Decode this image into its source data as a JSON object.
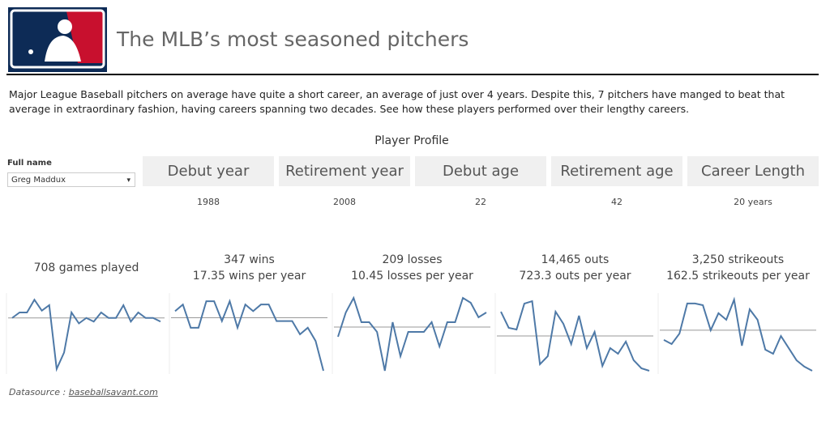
{
  "header": {
    "title": "The MLB’s most seasoned pitchers"
  },
  "intro": "Major League Baseball pitchers on average have quite a short career, an average of just over 4 years. Despite this, 7 pitchers have manged to beat that average in extraordinary fashion, having careers spanning two decades. See how these players performed over their lengthy careers.",
  "profile": {
    "title": "Player Profile",
    "filter_label": "Full name",
    "filter_value": "Greg Maddux",
    "fields": [
      {
        "label": "Debut year",
        "value": "1988"
      },
      {
        "label": "Retirement year",
        "value": "2008"
      },
      {
        "label": "Debut age",
        "value": "22"
      },
      {
        "label": "Retirement age",
        "value": "42"
      },
      {
        "label": "Career Length",
        "value": "20 years"
      }
    ]
  },
  "chart_data": [
    {
      "type": "line",
      "title": "708 games played",
      "color": "#4e79a7",
      "ylim": [
        0,
        40
      ],
      "average": 29,
      "values": [
        29,
        32,
        32,
        39,
        33,
        36,
        1,
        10,
        32,
        26,
        29,
        27,
        32,
        29,
        29,
        36,
        27,
        32,
        29,
        29,
        27
      ]
    },
    {
      "type": "line",
      "title": "347 wins",
      "subtitle": "17.35  wins per year",
      "color": "#4e79a7",
      "ylim": [
        0,
        22
      ],
      "average": 16,
      "values": [
        18,
        20,
        13,
        13,
        21,
        21,
        15,
        21,
        13,
        20,
        18,
        20,
        20,
        15,
        15,
        15,
        11,
        13,
        9,
        0
      ]
    },
    {
      "type": "line",
      "title": "209 losses",
      "subtitle": "10.45 losses per year",
      "color": "#4e79a7",
      "ylim": [
        0,
        15
      ],
      "average": 9,
      "values": [
        7,
        12,
        15,
        10,
        10,
        8,
        0,
        10,
        3,
        8,
        8,
        8,
        10,
        5,
        10,
        10,
        15,
        14,
        11,
        12
      ]
    },
    {
      "type": "line",
      "title": "14,465 outs",
      "subtitle": "723.3 outs per year",
      "color": "#4e79a7",
      "ylim": [
        0,
        1100
      ],
      "average": 526,
      "values": [
        892,
        648,
        623,
        1014,
        1051,
        98,
        220,
        892,
        709,
        403,
        831,
        342,
        587,
        73,
        342,
        257,
        440,
        159,
        37,
        0
      ]
    },
    {
      "type": "line",
      "title": "3,250 strikeouts",
      "subtitle": "162.5 strikeouts per year",
      "color": "#4e79a7",
      "ylim": [
        0,
        300
      ],
      "average": 167,
      "values": [
        127,
        110,
        153,
        277,
        277,
        270,
        167,
        237,
        210,
        293,
        103,
        253,
        210,
        87,
        70,
        143,
        93,
        43,
        17,
        0
      ]
    }
  ],
  "footer": {
    "prefix": "Datasource : ",
    "link": "baseballsavant.com"
  }
}
